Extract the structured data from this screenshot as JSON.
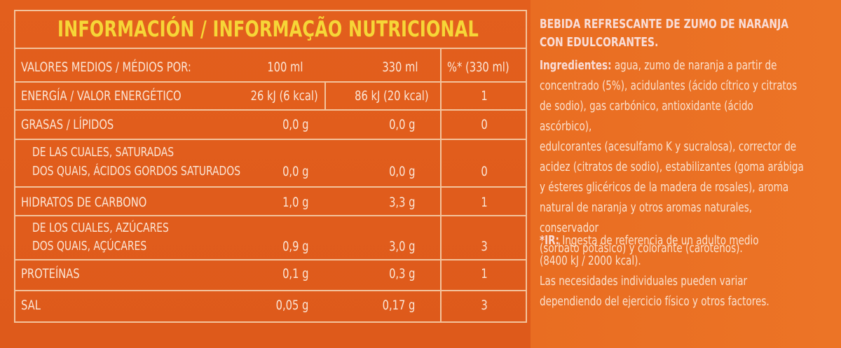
{
  "table": {
    "title": "INFORMACIÓN / INFORMAÇÃO NUTRICIONAL",
    "header": {
      "label": "VALORES MEDIOS / MÉDIOS POR:",
      "col1": "100 ml",
      "col2": "330 ml",
      "col3": "%* (330 ml)"
    },
    "rows": [
      {
        "label": "ENERGÍA / VALOR ENERGÉTICO",
        "v100": "26 kJ (6 kcal)",
        "v330": "86 kJ (20 kcal)",
        "pct": "1"
      },
      {
        "label": "GRASAS / LÍPIDOS",
        "v100": "0,0 g",
        "v330": "0,0 g",
        "pct": "0"
      },
      {
        "label_line1": "DE LAS CUALES, SATURADAS",
        "label_line2": "DOS QUAIS, ÁCIDOS GORDOS SATURADOS",
        "v100": "0,0 g",
        "v330": "0,0 g",
        "pct": "0"
      },
      {
        "label": "HIDRATOS DE CARBONO",
        "v100": "1,0 g",
        "v330": "3,3 g",
        "pct": "1"
      },
      {
        "label_line1": "DE LOS CUALES, AZÚCARES",
        "label_line2": "DOS QUAIS, AÇÚCARES",
        "v100": "0,9 g",
        "v330": "3,0 g",
        "pct": "3"
      },
      {
        "label": "PROTEÍNAS",
        "v100": "0,1 g",
        "v330": "0,3 g",
        "pct": "1"
      },
      {
        "label": "SAL",
        "v100": "0,05 g",
        "v330": "0,17 g",
        "pct": "3"
      }
    ]
  },
  "product": {
    "name_line1": "BEBIDA REFRESCANTE DE ZUMO DE NARANJA",
    "name_line2": "CON EDULCORANTES."
  },
  "ingredients": {
    "label": "Ingredientes:",
    "lines": [
      " agua, zumo de naranja a partir de",
      "concentrado (5%), acidulantes (ácido cítrico y citratos",
      "de sodio), gas carbónico, antioxidante (ácido ascórbico),",
      "edulcorantes (acesulfamo K y sucralosa), corrector de",
      "acidez (citratos de sodio), estabilizantes (goma arábiga",
      "y ésteres glicéricos de la madera de rosales), aroma",
      "natural de naranja y otros aromas naturales, conservador",
      "(sorbato potásico) y colorante (carotenos)."
    ]
  },
  "reference": {
    "label": "*IR:",
    "lines": [
      " Ingesta de referencia de un adulto medio",
      "(8400 kJ / 2000 kcal).",
      "Las necesidades individuales pueden variar",
      "dependiendo del ejercicio físico y otros factores."
    ]
  }
}
